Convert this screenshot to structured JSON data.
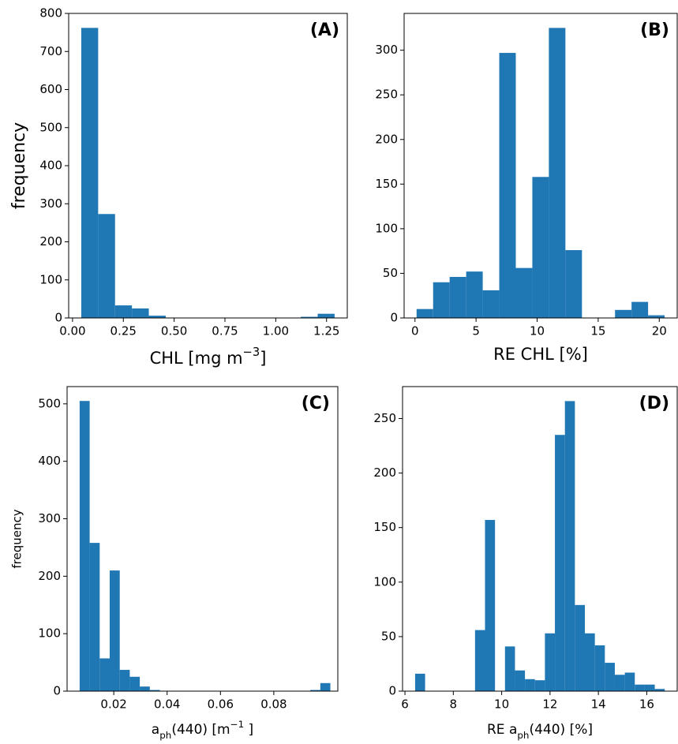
{
  "chart_data": [
    {
      "type": "histogram",
      "annotation": "(A)",
      "ylabel": "frequency",
      "xlabel": [
        {
          "text": "CHL [mg m"
        },
        {
          "sup": "−3"
        },
        {
          "text": "]"
        }
      ],
      "color": "#1f77b4",
      "bins": [
        0.043,
        0.1261,
        0.2092,
        0.2923,
        0.3754,
        0.4585,
        0.5416,
        0.6247,
        0.7078,
        0.7909,
        0.874,
        0.9571,
        1.0402,
        1.1233,
        1.2064,
        1.2895
      ],
      "values": [
        762,
        273,
        33,
        25,
        6,
        0,
        0,
        0,
        0,
        0,
        0,
        0,
        0,
        3,
        11
      ],
      "xlim": [
        -0.019,
        1.352
      ],
      "ylim": [
        0,
        800
      ],
      "xticks": [
        {
          "value": 0,
          "label": "0.00"
        },
        {
          "value": 0.25,
          "label": "0.25"
        },
        {
          "value": 0.5,
          "label": "0.50"
        },
        {
          "value": 0.75,
          "label": "0.75"
        },
        {
          "value": 1,
          "label": "1.00"
        },
        {
          "value": 1.25,
          "label": "1.25"
        }
      ],
      "yticks": [
        0,
        100,
        200,
        300,
        400,
        500,
        600,
        700,
        800
      ]
    },
    {
      "type": "histogram",
      "annotation": "(B)",
      "xlabel": [
        {
          "text": "RE CHL [%]"
        }
      ],
      "color": "#1f77b4",
      "bins": [
        0.13,
        1.484,
        2.838,
        4.192,
        5.546,
        6.9,
        8.254,
        9.608,
        10.962,
        12.316,
        13.67,
        15.024,
        16.378,
        17.732,
        19.086,
        20.44
      ],
      "values": [
        10,
        40,
        46,
        52,
        31,
        297,
        56,
        158,
        325,
        76,
        0,
        0,
        9,
        18,
        3
      ],
      "xlim": [
        -0.89,
        21.47
      ],
      "ylim": [
        0,
        341.25
      ],
      "xticks": [
        0,
        5,
        10,
        15,
        20
      ],
      "yticks": [
        0,
        50,
        100,
        150,
        200,
        250,
        300
      ]
    },
    {
      "type": "histogram",
      "annotation": "(C)",
      "ylabel": "frequency",
      "xlabel": [
        {
          "text": "a"
        },
        {
          "sub": "ph"
        },
        {
          "text": "(440) [m"
        },
        {
          "sup": "−1"
        },
        {
          "text": " ]"
        }
      ],
      "color": "#1f77b4",
      "bins": [
        0.0072,
        0.01096,
        0.01472,
        0.01848,
        0.02224,
        0.026,
        0.02976,
        0.03352,
        0.03728,
        0.04104,
        0.0448,
        0.04856,
        0.05232,
        0.05608,
        0.05984,
        0.0636,
        0.06736,
        0.07112,
        0.07488,
        0.07864,
        0.0824,
        0.08616,
        0.08992,
        0.09368,
        0.09744,
        0.1012
      ],
      "values": [
        505,
        258,
        57,
        210,
        37,
        25,
        8,
        2,
        0,
        0,
        0,
        0,
        0,
        0,
        0,
        0,
        0,
        0,
        0,
        0,
        0,
        0,
        0,
        2,
        14
      ],
      "xlim": [
        0.0025,
        0.104
      ],
      "ylim": [
        0,
        530
      ],
      "xticks": [
        0.02,
        0.04,
        0.06,
        0.08
      ],
      "yticks": [
        0,
        100,
        200,
        300,
        400,
        500
      ]
    },
    {
      "type": "histogram",
      "annotation": "(D)",
      "xlabel": [
        {
          "text": "RE a"
        },
        {
          "sub": "ph"
        },
        {
          "text": "(440) [%]"
        }
      ],
      "color": "#1f77b4",
      "bins": [
        6.42,
        6.833,
        7.246,
        7.659,
        8.072,
        8.485,
        8.898,
        9.311,
        9.724,
        10.137,
        10.55,
        10.963,
        11.376,
        11.789,
        12.202,
        12.615,
        13.028,
        13.441,
        13.854,
        14.267,
        14.68,
        15.093,
        15.506,
        15.919,
        16.332,
        16.745
      ],
      "values": [
        16,
        0,
        0,
        0,
        0,
        0,
        56,
        157,
        0,
        41,
        19,
        11,
        10,
        53,
        235,
        266,
        79,
        53,
        42,
        26,
        15,
        17,
        6,
        6,
        2
      ],
      "xlim": [
        5.9,
        17.26
      ],
      "ylim": [
        0,
        279.3
      ],
      "xticks": [
        6,
        8,
        10,
        12,
        14,
        16
      ],
      "yticks": [
        0,
        50,
        100,
        150,
        200,
        250
      ]
    }
  ]
}
